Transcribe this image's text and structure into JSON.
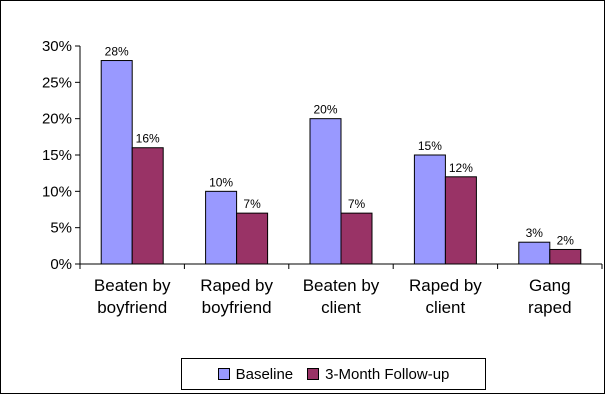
{
  "chart_data": {
    "type": "bar",
    "categories": [
      "Beaten by\nboyfriend",
      "Raped by\nboyfriend",
      "Beaten by\nclient",
      "Raped by\nclient",
      "Gang\nraped"
    ],
    "series": [
      {
        "name": "Baseline",
        "values": [
          28,
          10,
          20,
          15,
          3
        ],
        "labels": [
          "28%",
          "10%",
          "20%",
          "15%",
          "3%"
        ],
        "color": "#9999ff"
      },
      {
        "name": "3-Month Follow-up",
        "values": [
          16,
          7,
          7,
          12,
          2
        ],
        "labels": [
          "16%",
          "7%",
          "7%",
          "12%",
          "2%"
        ],
        "color": "#993366"
      }
    ],
    "y_ticks": [
      "0%",
      "5%",
      "10%",
      "15%",
      "20%",
      "25%",
      "30%"
    ],
    "ylim": [
      0,
      30
    ],
    "grid": false,
    "legend_position": "bottom"
  }
}
